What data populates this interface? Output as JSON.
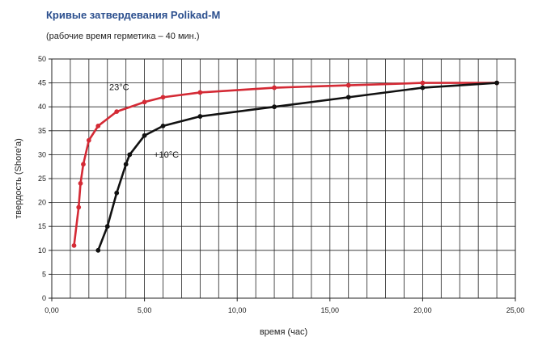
{
  "chart_data": {
    "type": "line",
    "title": "Кривые затвердевания Polikad-M",
    "subtitle": "(рабочие время герметика – 40 мин.)",
    "xlabel": "время (час)",
    "ylabel": "твердость (Shore'a)",
    "xlim": [
      0,
      25
    ],
    "ylim": [
      0,
      50
    ],
    "x_ticks": [
      "0,00",
      "5,00",
      "10,00",
      "15,00",
      "20,00",
      "25,00"
    ],
    "y_ticks": [
      "0",
      "5",
      "10",
      "15",
      "20",
      "25",
      "30",
      "35",
      "40",
      "45",
      "50"
    ],
    "grid": true,
    "series": [
      {
        "name": "23°C",
        "color": "#d42a35",
        "points": [
          [
            1.2,
            11
          ],
          [
            1.45,
            19
          ],
          [
            1.55,
            24
          ],
          [
            1.7,
            28
          ],
          [
            2.0,
            33
          ],
          [
            2.5,
            36
          ],
          [
            3.5,
            39
          ],
          [
            5.0,
            41
          ],
          [
            6.0,
            42
          ],
          [
            8.0,
            43
          ],
          [
            12.0,
            44
          ],
          [
            16.0,
            44.5
          ],
          [
            20.0,
            45
          ],
          [
            24.0,
            45
          ]
        ]
      },
      {
        "name": "+10°C",
        "color": "#111111",
        "points": [
          [
            2.5,
            10
          ],
          [
            3.0,
            15
          ],
          [
            3.5,
            22
          ],
          [
            4.0,
            28
          ],
          [
            4.2,
            30
          ],
          [
            5.0,
            34
          ],
          [
            6.0,
            36
          ],
          [
            8.0,
            38
          ],
          [
            12.0,
            40
          ],
          [
            16.0,
            42
          ],
          [
            20.0,
            44
          ],
          [
            24.0,
            45
          ]
        ]
      }
    ]
  }
}
